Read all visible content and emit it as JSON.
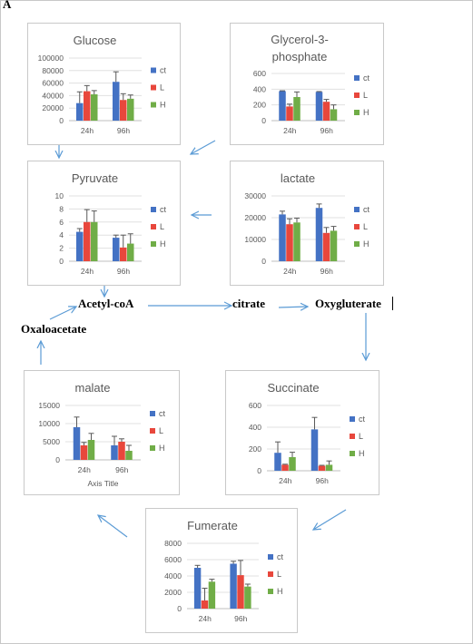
{
  "figure": {
    "panel_label": "A"
  },
  "pathway": {
    "acetyl_coa": "Acetyl-coA",
    "citrate": "citrate",
    "oxygluterate": "Oxygluterate",
    "oxaloacetate": "Oxaloacetate"
  },
  "colors": {
    "ct": "#4472C4",
    "L": "#E8473C",
    "H": "#70AD47",
    "arrow": "#5B9BD5",
    "error": "#595959"
  },
  "chart_data": [
    {
      "id": "glucose",
      "type": "bar",
      "title": "Glucose",
      "categories": [
        "24h",
        "96h"
      ],
      "ylim": [
        0,
        100000
      ],
      "yticks": [
        "0",
        "20000",
        "40000",
        "60000",
        "80000",
        "100000"
      ],
      "series": [
        {
          "name": "ct",
          "values": [
            28000,
            62000
          ],
          "errors": [
            18000,
            16000
          ]
        },
        {
          "name": "L",
          "values": [
            47000,
            33000
          ],
          "errors": [
            9000,
            10000
          ]
        },
        {
          "name": "H",
          "values": [
            42000,
            35000
          ],
          "errors": [
            6000,
            6000
          ]
        }
      ],
      "xlabel": ""
    },
    {
      "id": "glycerol3p",
      "type": "bar",
      "title": "Glycerol-3-phosphate",
      "title_lines": [
        "Glycerol-3-",
        "phosphate"
      ],
      "categories": [
        "24h",
        "96h"
      ],
      "ylim": [
        0,
        600
      ],
      "yticks": [
        "0",
        "200",
        "400",
        "600"
      ],
      "series": [
        {
          "name": "ct",
          "values": [
            375,
            365
          ],
          "errors": [
            5,
            5
          ]
        },
        {
          "name": "L",
          "values": [
            180,
            240
          ],
          "errors": [
            30,
            30
          ]
        },
        {
          "name": "H",
          "values": [
            300,
            145
          ],
          "errors": [
            65,
            55
          ]
        }
      ],
      "xlabel": ""
    },
    {
      "id": "pyruvate",
      "type": "bar",
      "title": "Pyruvate",
      "categories": [
        "24h",
        "96h"
      ],
      "ylim": [
        0,
        10
      ],
      "yticks": [
        "0",
        "2",
        "4",
        "6",
        "8",
        "10"
      ],
      "series": [
        {
          "name": "ct",
          "values": [
            4.5,
            3.6
          ],
          "errors": [
            0.5,
            0.4
          ]
        },
        {
          "name": "L",
          "values": [
            6.0,
            2.1
          ],
          "errors": [
            1.9,
            1.9
          ]
        },
        {
          "name": "H",
          "values": [
            6.0,
            2.7
          ],
          "errors": [
            1.7,
            1.5
          ]
        }
      ],
      "xlabel": ""
    },
    {
      "id": "lactate",
      "type": "bar",
      "title": "lactate",
      "categories": [
        "24h",
        "96h"
      ],
      "ylim": [
        0,
        30000
      ],
      "yticks": [
        "0",
        "10000",
        "20000",
        "30000"
      ],
      "series": [
        {
          "name": "ct",
          "values": [
            21500,
            24500
          ],
          "errors": [
            1500,
            1800
          ]
        },
        {
          "name": "L",
          "values": [
            17000,
            13000
          ],
          "errors": [
            2500,
            2500
          ]
        },
        {
          "name": "H",
          "values": [
            17800,
            14000
          ],
          "errors": [
            2000,
            2000
          ]
        }
      ],
      "xlabel": ""
    },
    {
      "id": "malate",
      "type": "bar",
      "title": "malate",
      "categories": [
        "24h",
        "96h"
      ],
      "ylim": [
        0,
        15000
      ],
      "yticks": [
        "0",
        "5000",
        "10000",
        "15000"
      ],
      "series": [
        {
          "name": "ct",
          "values": [
            9000,
            4000
          ],
          "errors": [
            2800,
            2500
          ]
        },
        {
          "name": "L",
          "values": [
            4000,
            5000
          ],
          "errors": [
            800,
            800
          ]
        },
        {
          "name": "H",
          "values": [
            5500,
            2500
          ],
          "errors": [
            1800,
            1500
          ]
        }
      ],
      "xlabel": "Axis Title"
    },
    {
      "id": "succinate",
      "type": "bar",
      "title": "Succinate",
      "categories": [
        "24h",
        "96h"
      ],
      "ylim": [
        0,
        600
      ],
      "yticks": [
        "0",
        "200",
        "400",
        "600"
      ],
      "series": [
        {
          "name": "ct",
          "values": [
            165,
            380
          ],
          "errors": [
            100,
            110
          ]
        },
        {
          "name": "L",
          "values": [
            55,
            45
          ],
          "errors": [
            5,
            5
          ]
        },
        {
          "name": "H",
          "values": [
            125,
            55
          ],
          "errors": [
            45,
            35
          ]
        }
      ],
      "xlabel": ""
    },
    {
      "id": "fumerate",
      "type": "bar",
      "title": "Fumerate",
      "categories": [
        "24h",
        "96h"
      ],
      "ylim": [
        0,
        8000
      ],
      "yticks": [
        "0",
        "2000",
        "4000",
        "6000",
        "8000"
      ],
      "series": [
        {
          "name": "ct",
          "values": [
            5000,
            5500
          ],
          "errors": [
            300,
            300
          ]
        },
        {
          "name": "L",
          "values": [
            1000,
            4100
          ],
          "errors": [
            1500,
            1800
          ]
        },
        {
          "name": "H",
          "values": [
            3300,
            2700
          ],
          "errors": [
            300,
            300
          ]
        }
      ],
      "xlabel": ""
    }
  ]
}
